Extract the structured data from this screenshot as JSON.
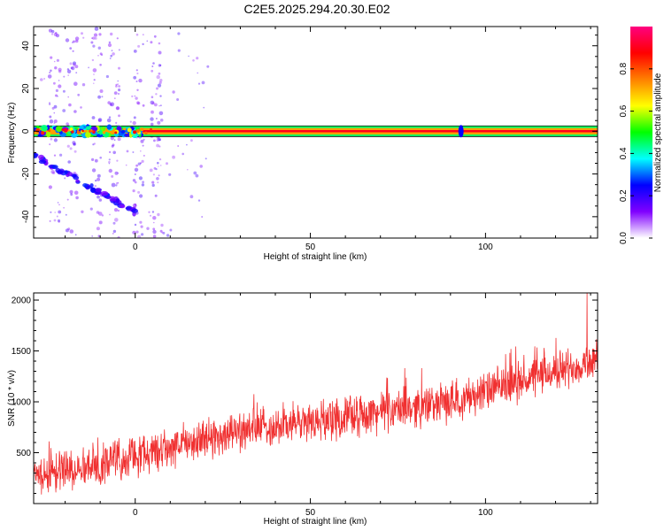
{
  "title": "C2E5.2025.294.20.30.E02",
  "chart_data": [
    {
      "type": "heatmap",
      "name": "spectrogram",
      "xlabel": "Height of straight line (km)",
      "ylabel": "Frequency (Hz)",
      "xlim": [
        -29,
        132
      ],
      "ylim": [
        -50,
        49
      ],
      "xticks": [
        0,
        50,
        100
      ],
      "yticks": [
        -40,
        -20,
        0,
        20,
        40
      ],
      "features": {
        "main_line_frequency_hz": 0,
        "main_band_halfwidth_hz": 1.5,
        "dispersive_trace": {
          "x_start": -29,
          "x_end": 0,
          "freq_start": -11,
          "freq_end": -38
        },
        "secondary_blob": {
          "x": 93,
          "freq": 0
        }
      },
      "colorbar": {
        "label": "Normalized spectral amplitude",
        "range": [
          0,
          1
        ],
        "ticks": [
          "0.0",
          "0.2",
          "0.4",
          "0.6",
          "0.8"
        ],
        "tick_values": [
          0,
          0.2,
          0.4,
          0.6,
          0.8
        ],
        "colors": [
          "#ffffff",
          "#8000ff",
          "#0000ff",
          "#00ffff",
          "#00ff00",
          "#ffff00",
          "#ff8000",
          "#ff0000",
          "#ff0080"
        ]
      }
    },
    {
      "type": "line",
      "name": "snr",
      "xlabel": "Height of straight line (km)",
      "ylabel": "SNR (10 * v/v)",
      "xlim": [
        -29,
        132
      ],
      "ylim": [
        0,
        2070
      ],
      "xticks": [
        0,
        50,
        100
      ],
      "yticks": [
        500,
        1000,
        1500,
        2000
      ],
      "color": "#f03030",
      "trend": {
        "x": [
          -29,
          0,
          30,
          60,
          90,
          132
        ],
        "y": [
          280,
          460,
          720,
          850,
          1000,
          1420
        ]
      },
      "noise_amplitude": 240,
      "peak": {
        "x": 129,
        "y": 2070
      }
    }
  ]
}
